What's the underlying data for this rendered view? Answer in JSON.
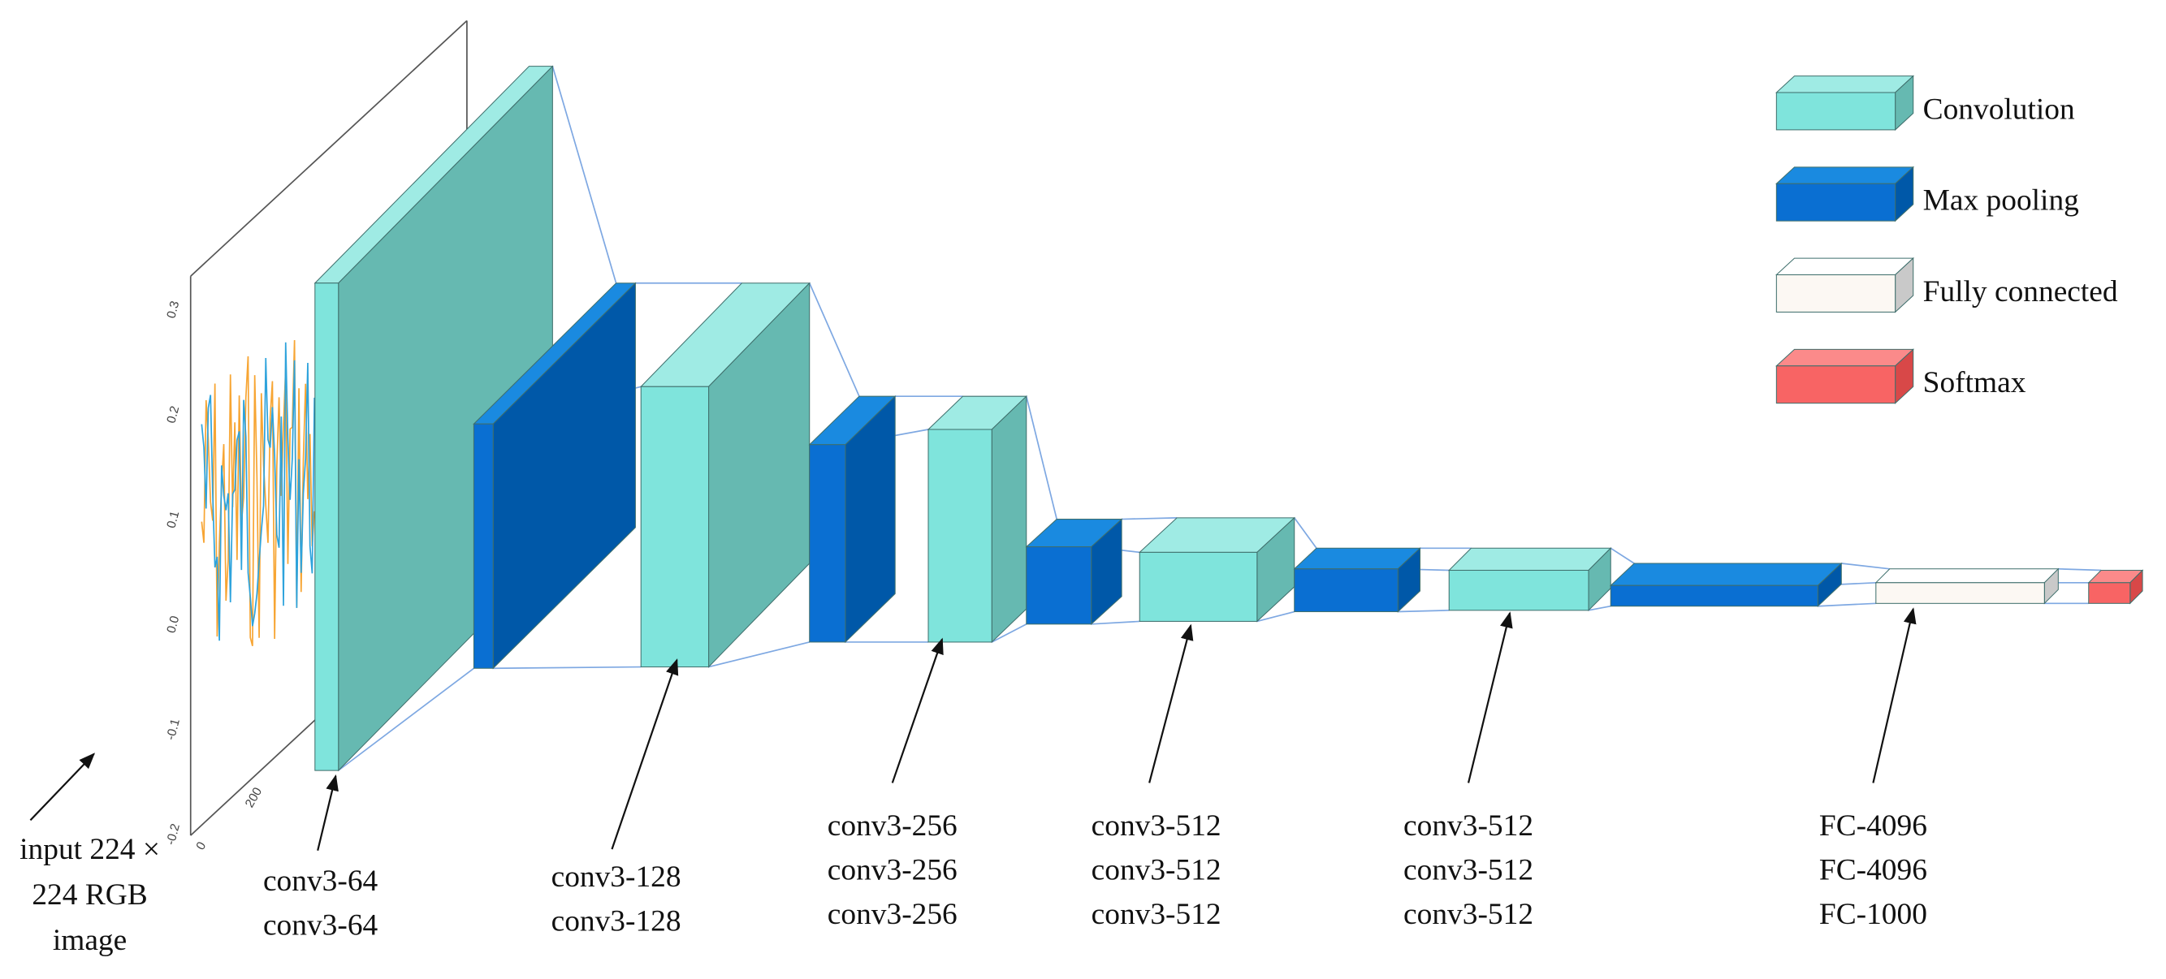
{
  "input_label": {
    "lines": [
      "input 224 ×",
      "224 RGB",
      "image"
    ]
  },
  "inset_plot": {
    "yticks": [
      "0.3",
      "0.2",
      "0.1",
      "0.0",
      "-0.1",
      "-0.2"
    ],
    "xticks": [
      "0",
      "200"
    ]
  },
  "layers": [
    {
      "lines": [
        "conv3-64",
        "conv3-64"
      ]
    },
    {
      "lines": [
        "conv3-128",
        "conv3-128"
      ]
    },
    {
      "lines": [
        "conv3-256",
        "conv3-256",
        "conv3-256"
      ]
    },
    {
      "lines": [
        "conv3-512",
        "conv3-512",
        "conv3-512"
      ]
    },
    {
      "lines": [
        "conv3-512",
        "conv3-512",
        "conv3-512"
      ]
    },
    {
      "lines": [
        "FC-4096",
        "FC-4096",
        "FC-1000"
      ]
    }
  ],
  "legend": [
    {
      "label": "Convolution"
    },
    {
      "label": "Max pooling"
    },
    {
      "label": "Fully connected"
    },
    {
      "label": "Softmax"
    }
  ]
}
